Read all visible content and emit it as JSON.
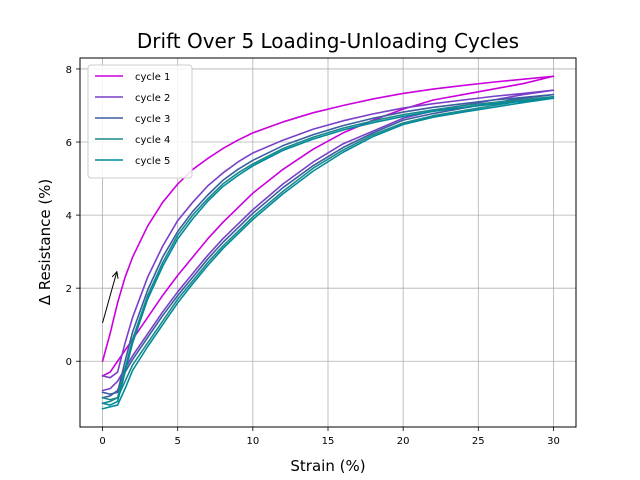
{
  "chart_data": {
    "type": "line",
    "title": "Drift Over 5 Loading-Unloading Cycles",
    "xlabel": "Strain (%)",
    "ylabel": "Δ Resistance (%)",
    "xlim": [
      -1.5,
      31.5
    ],
    "ylim": [
      -1.8,
      8.3
    ],
    "xticks": [
      0,
      5,
      10,
      15,
      20,
      25,
      30
    ],
    "yticks": [
      0,
      2,
      4,
      6,
      8
    ],
    "grid": true,
    "legend_position": "top-left",
    "annotation": {
      "type": "arrow",
      "from": [
        0,
        1.05
      ],
      "to": [
        0.95,
        2.45
      ]
    },
    "series": [
      {
        "name": "cycle 1",
        "color": "#cc00dd",
        "loading": {
          "x": [
            0,
            0.5,
            1,
            1.5,
            2,
            3,
            4,
            5,
            6,
            7,
            8,
            9,
            10,
            12,
            14,
            16,
            18,
            20,
            22,
            24,
            26,
            28,
            30
          ],
          "y": [
            0.0,
            0.75,
            1.6,
            2.3,
            2.85,
            3.7,
            4.35,
            4.85,
            5.25,
            5.55,
            5.82,
            6.05,
            6.25,
            6.55,
            6.8,
            7.0,
            7.18,
            7.33,
            7.45,
            7.55,
            7.64,
            7.72,
            7.8
          ]
        },
        "unloading": {
          "x": [
            30,
            28,
            26,
            24,
            22,
            20,
            18,
            16,
            14,
            12,
            10,
            9,
            8,
            7,
            6,
            5,
            4,
            3,
            2,
            1.5,
            1,
            0.5,
            0
          ],
          "y": [
            7.8,
            7.6,
            7.45,
            7.3,
            7.15,
            6.9,
            6.6,
            6.25,
            5.8,
            5.25,
            4.6,
            4.2,
            3.8,
            3.35,
            2.85,
            2.35,
            1.8,
            1.2,
            0.6,
            0.3,
            0.0,
            -0.3,
            -0.4
          ]
        }
      },
      {
        "name": "cycle 2",
        "color": "#7a3fc8",
        "loading": {
          "x": [
            0,
            0.5,
            1,
            1.5,
            2,
            3,
            4,
            5,
            6,
            7,
            8,
            9,
            10,
            12,
            14,
            16,
            18,
            20,
            22,
            24,
            26,
            28,
            30
          ],
          "y": [
            -0.4,
            -0.45,
            -0.3,
            0.5,
            1.2,
            2.3,
            3.15,
            3.85,
            4.35,
            4.8,
            5.15,
            5.45,
            5.7,
            6.05,
            6.35,
            6.58,
            6.77,
            6.93,
            7.05,
            7.15,
            7.25,
            7.33,
            7.42
          ]
        },
        "unloading": {
          "x": [
            30,
            28,
            26,
            24,
            22,
            20,
            18,
            16,
            14,
            12,
            10,
            9,
            8,
            7,
            6,
            5,
            4,
            3,
            2,
            1.5,
            1,
            0.5,
            0
          ],
          "y": [
            7.42,
            7.3,
            7.15,
            7.0,
            6.85,
            6.65,
            6.3,
            5.95,
            5.45,
            4.85,
            4.15,
            3.75,
            3.35,
            2.9,
            2.4,
            1.9,
            1.35,
            0.75,
            0.15,
            -0.2,
            -0.55,
            -0.75,
            -0.8
          ]
        }
      },
      {
        "name": "cycle 3",
        "color": "#3c5ea0",
        "loading": {
          "x": [
            0,
            0.5,
            1,
            1.5,
            2,
            3,
            4,
            5,
            6,
            7,
            8,
            9,
            10,
            12,
            14,
            16,
            18,
            20,
            22,
            24,
            26,
            28,
            30
          ],
          "y": [
            -0.85,
            -0.9,
            -0.85,
            0.0,
            0.8,
            1.95,
            2.85,
            3.55,
            4.1,
            4.55,
            4.95,
            5.25,
            5.5,
            5.9,
            6.2,
            6.45,
            6.65,
            6.82,
            6.95,
            7.05,
            7.15,
            7.22,
            7.3
          ]
        },
        "unloading": {
          "x": [
            30,
            28,
            26,
            24,
            22,
            20,
            18,
            16,
            14,
            12,
            10,
            9,
            8,
            7,
            6,
            5,
            4,
            3,
            2,
            1.5,
            1,
            0.5,
            0
          ],
          "y": [
            7.3,
            7.2,
            7.07,
            6.93,
            6.78,
            6.6,
            6.25,
            5.85,
            5.35,
            4.75,
            4.05,
            3.65,
            3.25,
            2.8,
            2.3,
            1.8,
            1.25,
            0.65,
            0.05,
            -0.3,
            -0.8,
            -0.95,
            -1.0
          ]
        }
      },
      {
        "name": "cycle 4",
        "color": "#1a8a8a",
        "loading": {
          "x": [
            0,
            0.5,
            1,
            1.5,
            2,
            3,
            4,
            5,
            6,
            7,
            8,
            9,
            10,
            12,
            14,
            16,
            18,
            20,
            22,
            24,
            26,
            28,
            30
          ],
          "y": [
            -1.0,
            -1.05,
            -1.0,
            -0.2,
            0.6,
            1.8,
            2.7,
            3.45,
            4.0,
            4.45,
            4.85,
            5.15,
            5.4,
            5.82,
            6.13,
            6.38,
            6.58,
            6.75,
            6.88,
            7.0,
            7.08,
            7.16,
            7.24
          ]
        },
        "unloading": {
          "x": [
            30,
            28,
            26,
            24,
            22,
            20,
            18,
            16,
            14,
            12,
            10,
            9,
            8,
            7,
            6,
            5,
            4,
            3,
            2,
            1.5,
            1,
            0.5,
            0
          ],
          "y": [
            7.24,
            7.13,
            7.0,
            6.86,
            6.72,
            6.52,
            6.2,
            5.78,
            5.28,
            4.65,
            3.95,
            3.55,
            3.15,
            2.7,
            2.2,
            1.7,
            1.1,
            0.5,
            -0.1,
            -0.55,
            -1.0,
            -1.1,
            -1.15
          ]
        }
      },
      {
        "name": "cycle 5",
        "color": "#008b9b",
        "loading": {
          "x": [
            0,
            0.5,
            1,
            1.5,
            2,
            3,
            4,
            5,
            6,
            7,
            8,
            9,
            10,
            12,
            14,
            16,
            18,
            20,
            22,
            24,
            26,
            28,
            30
          ],
          "y": [
            -1.15,
            -1.2,
            -1.1,
            -0.3,
            0.5,
            1.7,
            2.6,
            3.35,
            3.9,
            4.38,
            4.78,
            5.08,
            5.35,
            5.77,
            6.08,
            6.33,
            6.53,
            6.7,
            6.84,
            6.95,
            7.04,
            7.12,
            7.2
          ]
        },
        "unloading": {
          "x": [
            30,
            28,
            26,
            24,
            22,
            20,
            18,
            16,
            14,
            12,
            10,
            9,
            8,
            7,
            6,
            5,
            4,
            3,
            2,
            1.5,
            1,
            0.5,
            0
          ],
          "y": [
            7.2,
            7.08,
            6.95,
            6.82,
            6.68,
            6.48,
            6.15,
            5.72,
            5.2,
            4.58,
            3.88,
            3.48,
            3.08,
            2.62,
            2.12,
            1.6,
            1.0,
            0.4,
            -0.25,
            -0.75,
            -1.2,
            -1.25,
            -1.3
          ]
        }
      }
    ]
  }
}
